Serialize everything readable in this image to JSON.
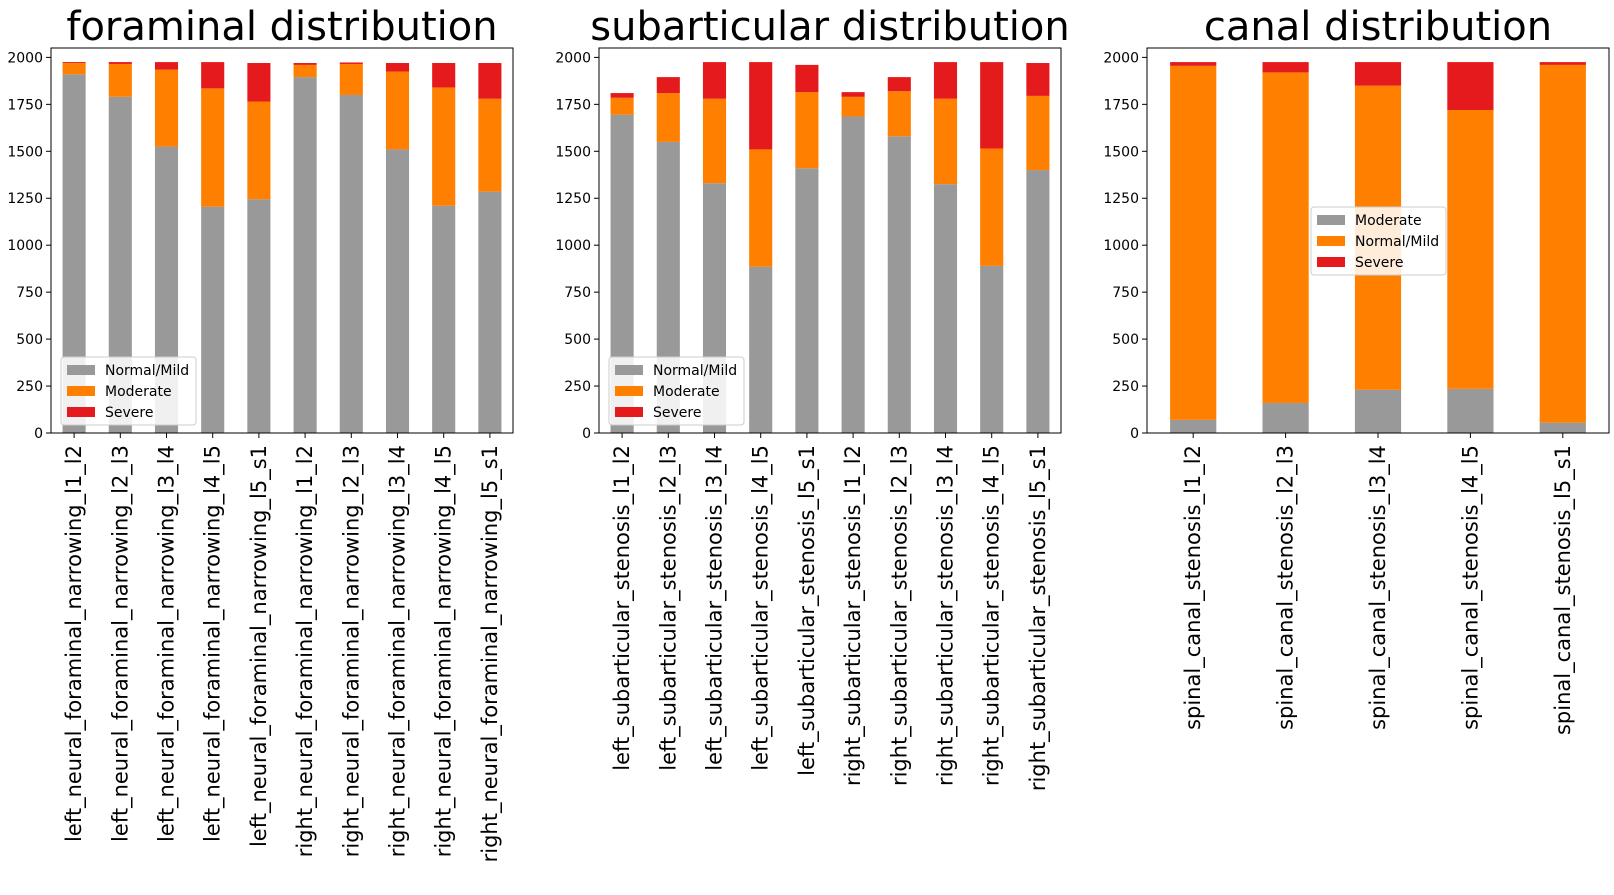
{
  "chart_data": [
    {
      "type": "bar",
      "stacked": true,
      "title": "foraminal distribution",
      "categories": [
        "left_neural_foraminal_narrowing_l1_l2",
        "left_neural_foraminal_narrowing_l2_l3",
        "left_neural_foraminal_narrowing_l3_l4",
        "left_neural_foraminal_narrowing_l4_l5",
        "left_neural_foraminal_narrowing_l5_s1",
        "right_neural_foraminal_narrowing_l1_l2",
        "right_neural_foraminal_narrowing_l2_l3",
        "right_neural_foraminal_narrowing_l3_l4",
        "right_neural_foraminal_narrowing_l4_l5",
        "right_neural_foraminal_narrowing_l5_s1"
      ],
      "series": [
        {
          "name": "Normal/Mild",
          "color": "#999999",
          "values": [
            1910,
            1790,
            1525,
            1205,
            1245,
            1895,
            1800,
            1510,
            1210,
            1285
          ]
        },
        {
          "name": "Moderate",
          "color": "#ff7f00",
          "values": [
            60,
            175,
            410,
            630,
            520,
            65,
            165,
            415,
            630,
            495
          ]
        },
        {
          "name": "Severe",
          "color": "#e41a1c",
          "values": [
            5,
            10,
            40,
            140,
            205,
            10,
            8,
            45,
            130,
            190
          ]
        }
      ],
      "ylim": [
        0,
        2050
      ],
      "yticks": [
        0,
        250,
        500,
        750,
        1000,
        1250,
        1500,
        1750,
        2000
      ],
      "legend_position": "lower-left"
    },
    {
      "type": "bar",
      "stacked": true,
      "title": "subarticular distribution",
      "categories": [
        "left_subarticular_stenosis_l1_l2",
        "left_subarticular_stenosis_l2_l3",
        "left_subarticular_stenosis_l3_l4",
        "left_subarticular_stenosis_l4_l5",
        "left_subarticular_stenosis_l5_s1",
        "right_subarticular_stenosis_l1_l2",
        "right_subarticular_stenosis_l2_l3",
        "right_subarticular_stenosis_l3_l4",
        "right_subarticular_stenosis_l4_l5",
        "right_subarticular_stenosis_l5_s1"
      ],
      "series": [
        {
          "name": "Normal/Mild",
          "color": "#999999",
          "values": [
            1695,
            1550,
            1330,
            885,
            1410,
            1685,
            1580,
            1325,
            890,
            1400
          ]
        },
        {
          "name": "Moderate",
          "color": "#ff7f00",
          "values": [
            90,
            260,
            450,
            625,
            405,
            105,
            240,
            455,
            625,
            395
          ]
        },
        {
          "name": "Severe",
          "color": "#e41a1c",
          "values": [
            25,
            85,
            195,
            465,
            145,
            25,
            75,
            195,
            460,
            175
          ]
        }
      ],
      "ylim": [
        0,
        2050
      ],
      "yticks": [
        0,
        250,
        500,
        750,
        1000,
        1250,
        1500,
        1750,
        2000
      ],
      "legend_position": "lower-left"
    },
    {
      "type": "bar",
      "stacked": true,
      "title": "canal distribution",
      "categories": [
        "spinal_canal_stenosis_l1_l2",
        "spinal_canal_stenosis_l2_l3",
        "spinal_canal_stenosis_l3_l4",
        "spinal_canal_stenosis_l4_l5",
        "spinal_canal_stenosis_l5_s1"
      ],
      "series": [
        {
          "name": "Moderate",
          "color": "#999999",
          "values": [
            70,
            160,
            230,
            235,
            55
          ]
        },
        {
          "name": "Normal/Mild",
          "color": "#ff7f00",
          "values": [
            1885,
            1760,
            1620,
            1485,
            1905
          ]
        },
        {
          "name": "Severe",
          "color": "#e41a1c",
          "values": [
            20,
            55,
            125,
            255,
            15
          ]
        }
      ],
      "ylim": [
        0,
        2050
      ],
      "yticks": [
        0,
        250,
        500,
        750,
        1000,
        1250,
        1500,
        1750,
        2000
      ],
      "legend_position": "center-left"
    }
  ]
}
